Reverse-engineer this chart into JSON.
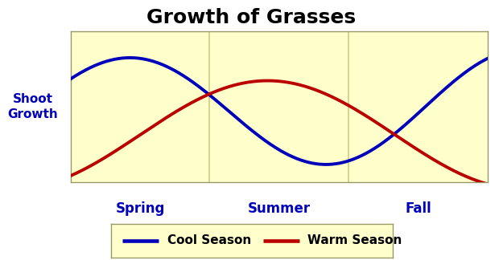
{
  "title": "Growth of Grasses",
  "title_fontsize": 18,
  "title_fontweight": "bold",
  "ylabel": "Shoot\nGrowth",
  "ylabel_fontsize": 11,
  "ylabel_color": "#0000BB",
  "ylabel_fontweight": "bold",
  "seasons": [
    "Spring",
    "Summer",
    "Fall"
  ],
  "season_label_fontsize": 12,
  "season_label_color": "#0000BB",
  "season_label_fontweight": "bold",
  "plot_bg_color": "#FFFFCC",
  "fig_bg_color": "#FFFFFF",
  "cool_season_color": "#0000BB",
  "warm_season_color": "#BB0000",
  "line_width": 2.8,
  "legend_label_cool": "Cool Season",
  "legend_label_warm": "Warm Season",
  "legend_fontsize": 11,
  "legend_bg_color": "#FFFFCC",
  "divider_color": "#CCCC88",
  "xmin": 0,
  "xmax": 9,
  "ymin": -1.6,
  "ymax": 1.6
}
